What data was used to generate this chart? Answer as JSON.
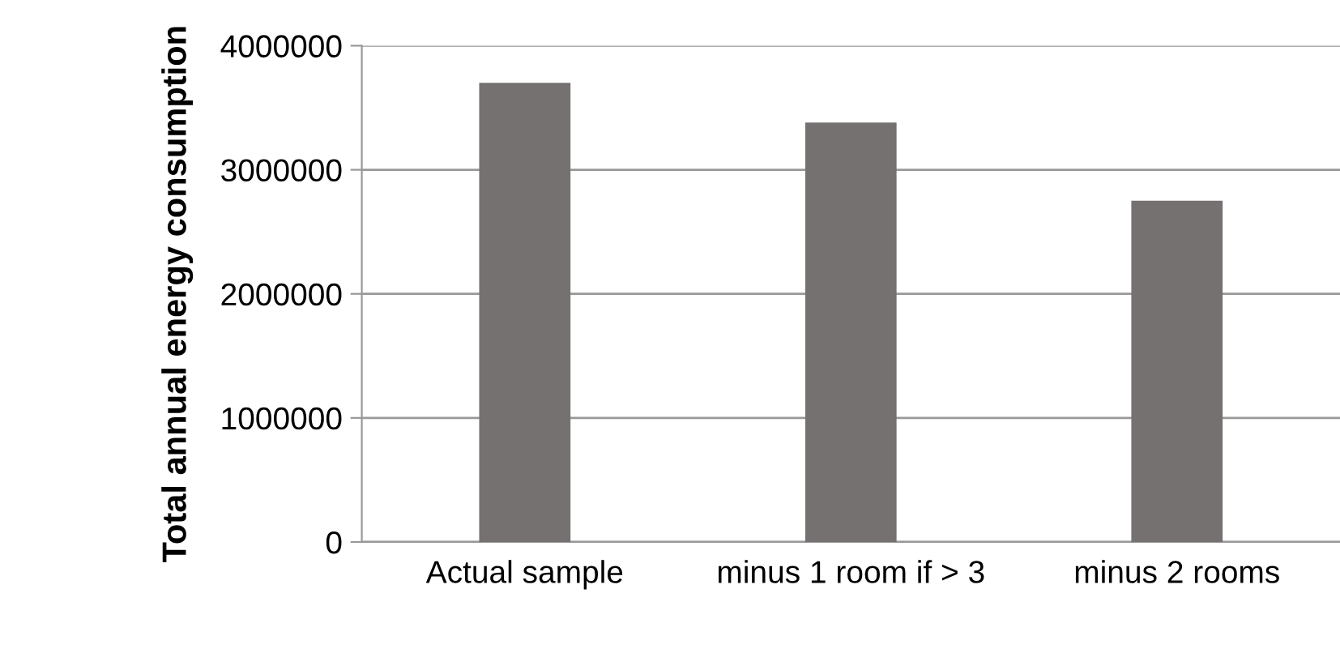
{
  "chart_data": {
    "type": "bar",
    "ylabel": "Total annual energy consumption",
    "categories": [
      "Actual sample",
      "minus 1 room if > 3",
      "minus 2 rooms"
    ],
    "values": [
      3700000,
      3380000,
      2750000
    ],
    "color": "#757170",
    "ylim": [
      0,
      4000000
    ],
    "yticks": [
      0,
      1000000,
      2000000,
      3000000,
      4000000
    ],
    "grid": "y"
  }
}
